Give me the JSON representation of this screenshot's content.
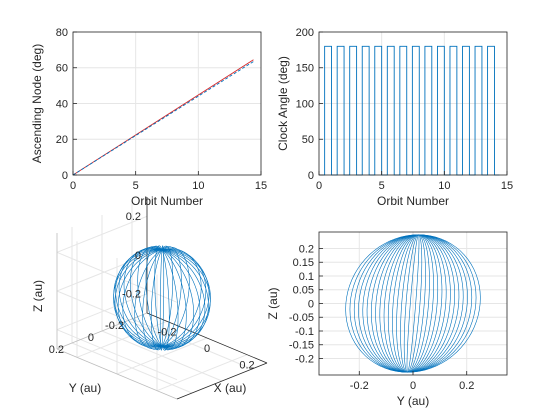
{
  "figure": {
    "background": "#ffffff",
    "axes_bg": "#ffffff",
    "grid_color": "#e6e6e6",
    "axis_color": "#262626",
    "series_color": "#0072bd",
    "ref_color": "#d62728"
  },
  "chart_data": [
    {
      "type": "line",
      "panel": "top-left",
      "title": "",
      "xlabel": "Orbit Number",
      "ylabel": "Ascending Node (deg)",
      "xlim": [
        0,
        15
      ],
      "ylim": [
        0,
        80
      ],
      "xticks": [
        "0",
        "5",
        "10",
        "15"
      ],
      "yticks": [
        "0",
        "20",
        "40",
        "60",
        "80"
      ],
      "grid": true,
      "series": [
        {
          "color": "#d62728",
          "style": "solid",
          "x": [
            0,
            14.4
          ],
          "y": [
            0,
            64.5
          ]
        },
        {
          "color": "#0072bd",
          "style": "dashed",
          "x": [
            0,
            14.4
          ],
          "y": [
            0,
            63.5
          ]
        }
      ]
    },
    {
      "type": "line",
      "panel": "top-right",
      "title": "",
      "xlabel": "Orbit Number",
      "ylabel": "Clock Angle (deg)",
      "xlim": [
        0,
        15
      ],
      "ylim": [
        0,
        200
      ],
      "xticks": [
        "0",
        "5",
        "10",
        "15"
      ],
      "yticks": [
        "0",
        "50",
        "100",
        "150",
        "200"
      ],
      "grid": true,
      "pattern": "square wave between 0 and 180 deg, one pulse per orbit",
      "low_value": 0,
      "high_value": 180,
      "pulse_starts": [
        0.45,
        1.45,
        2.45,
        3.45,
        4.45,
        5.45,
        6.45,
        7.45,
        8.45,
        9.45,
        10.45,
        11.45,
        12.45,
        13.45
      ],
      "pulse_width": 0.55,
      "x_end": 14.4
    },
    {
      "type": "line",
      "panel": "bottom-left",
      "view": "3d",
      "title": "",
      "xlabel": "X (au)",
      "ylabel": "Y (au)",
      "zlabel": "Z (au)",
      "xticks": [
        "-0.2",
        "0",
        "0.2"
      ],
      "yticks": [
        "0.2",
        "0",
        "-0.2"
      ],
      "zticks": [
        "0.2",
        "0",
        "-0.2"
      ],
      "grid": true,
      "description": "family of orbit ellipses tilted about the pole",
      "orbit_count": 16
    },
    {
      "type": "line",
      "panel": "bottom-right",
      "title": "",
      "xlabel": "Y (au)",
      "ylabel": "Z (au)",
      "xlim": [
        -0.35,
        0.35
      ],
      "ylim": [
        -0.26,
        0.26
      ],
      "xticks": [
        "-0.2",
        "0",
        "0.2"
      ],
      "yticks": [
        "-0.2",
        "-0.15",
        "-0.1",
        "-0.05",
        "0",
        "0.05",
        "0.1",
        "0.15",
        "0.2"
      ],
      "grid": true,
      "description": "family of orbit ellipses in Y-Z projection",
      "orbit_count": 16,
      "z_amplitude": 0.25,
      "y_amplitude_min": 0.01,
      "y_amplitude_max": 0.25
    }
  ]
}
